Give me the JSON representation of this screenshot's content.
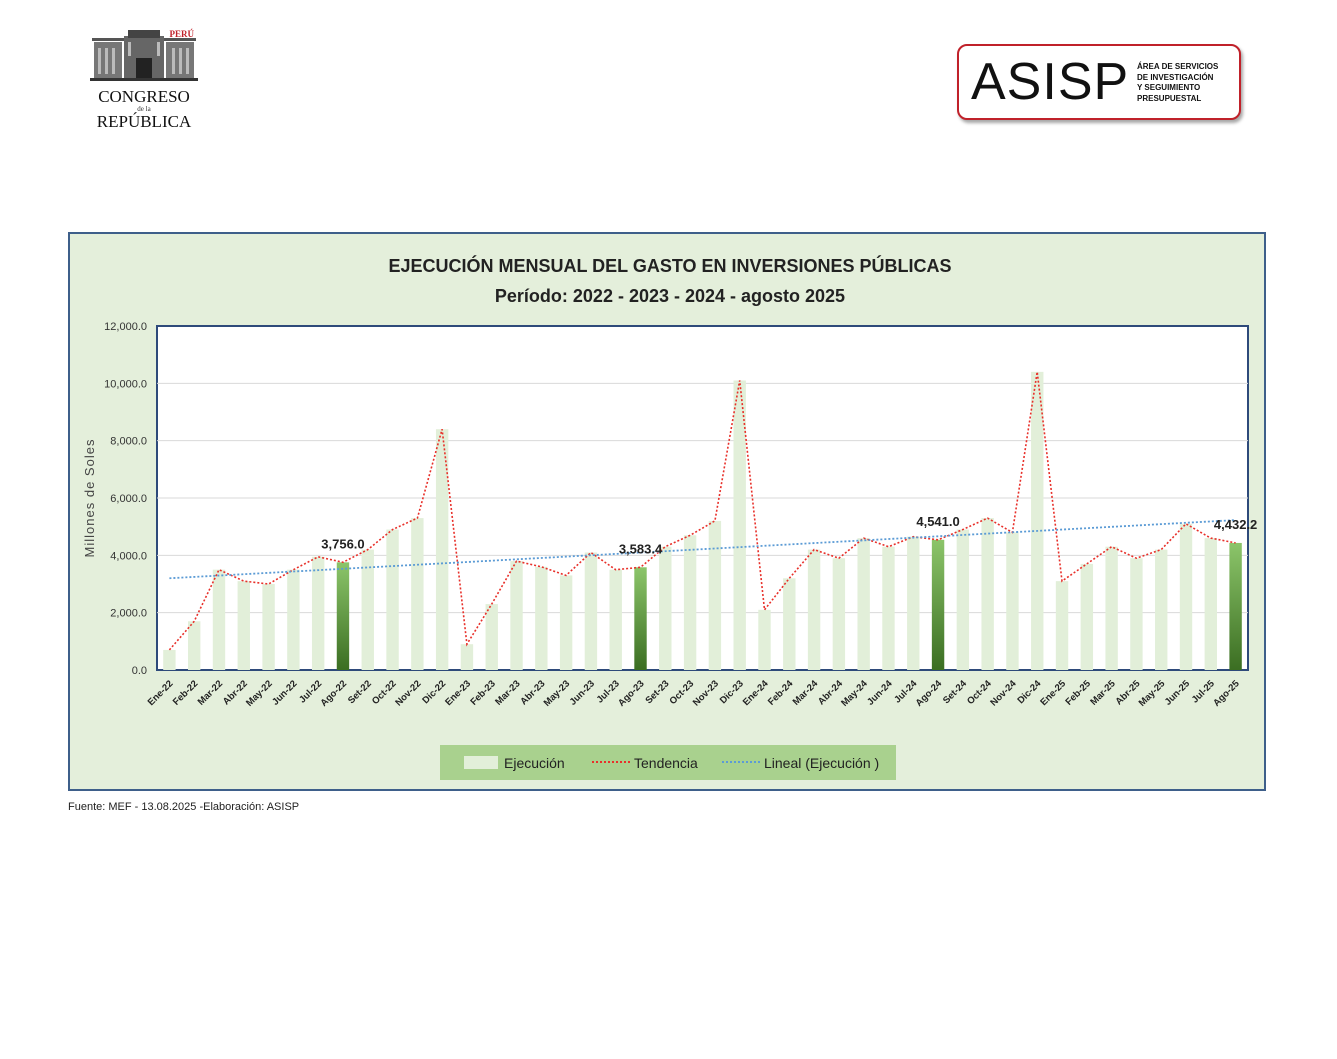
{
  "header": {
    "congreso_logo": {
      "top_text": "PERÚ",
      "line1": "CONGRESO",
      "line2": "de la",
      "line3": "REPÚBLICA"
    },
    "asisp_logo": {
      "name": "ASISP",
      "subtitle": [
        "ÁREA DE SERVICIOS",
        "DE INVESTIGACIÓN",
        "Y SEGUIMIENTO",
        "PRESUPUESTAL"
      ],
      "border_color": "#c0212a"
    }
  },
  "chart_data": {
    "type": "bar",
    "title": "EJECUCIÓN MENSUAL DEL GASTO EN INVERSIONES PÚBLICAS",
    "subtitle": "Período: 2022 - 2023 -  2024 - agosto 2025",
    "ylabel": "Millones de Soles",
    "xlabel": "",
    "ylim": [
      0,
      12000
    ],
    "yticks": [
      "0.0",
      "2,000.0",
      "4,000.0",
      "6,000.0",
      "8,000.0",
      "10,000.0",
      "12,000.0"
    ],
    "grid": true,
    "legend_position": "bottom",
    "categories": [
      "Ene-22",
      "Feb-22",
      "Mar-22",
      "Abr-22",
      "May-22",
      "Jun-22",
      "Jul-22",
      "Ago-22",
      "Set-22",
      "Oct-22",
      "Nov-22",
      "Dic-22",
      "Ene-23",
      "Feb-23",
      "Mar-23",
      "Abr-23",
      "May-23",
      "Jun-23",
      "Jul-23",
      "Ago-23",
      "Set-23",
      "Oct-23",
      "Nov-23",
      "Dic-23",
      "Ene-24",
      "Feb-24",
      "Mar-24",
      "Abr-24",
      "May-24",
      "Jun-24",
      "Jul-24",
      "Ago-24",
      "Set-24",
      "Oct-24",
      "Nov-24",
      "Dic-24",
      "Ene-25",
      "Feb-25",
      "Mar-25",
      "Abr-25",
      "May-25",
      "Jun-25",
      "Jul-25",
      "Ago-25"
    ],
    "series": [
      {
        "name": "Ejecución",
        "kind": "bar",
        "color": "#e2efd9",
        "highlight_color": "#4e8a2e",
        "values": [
          700,
          1700,
          3500,
          3100,
          3000,
          3500,
          3950,
          3756.0,
          4200,
          4900,
          5300,
          8400,
          900,
          2300,
          3800,
          3600,
          3300,
          4100,
          3500,
          3583.4,
          4300,
          4700,
          5200,
          10100,
          2100,
          3200,
          4200,
          3900,
          4600,
          4300,
          4650,
          4541.0,
          4900,
          5300,
          4800,
          10400,
          3100,
          3700,
          4300,
          3900,
          4200,
          5100,
          4600,
          4432.2
        ]
      },
      {
        "name": "Tendencia",
        "kind": "dotted-line",
        "color": "#e8302a"
      },
      {
        "name": "Lineal (Ejecución )",
        "kind": "trend-line",
        "color": "#5b9bd5",
        "start": 3200,
        "end": 5230
      }
    ],
    "highlighted_indices": [
      7,
      19,
      31,
      43
    ],
    "data_labels": [
      {
        "index": 7,
        "text": "3,756.0"
      },
      {
        "index": 19,
        "text": "3,583.4"
      },
      {
        "index": 31,
        "text": "4,541.0"
      },
      {
        "index": 43,
        "text": "4,432.2"
      }
    ]
  },
  "footer": {
    "source": "Fuente: MEF - 13.08.2025 -Elaboración: ASISP"
  }
}
